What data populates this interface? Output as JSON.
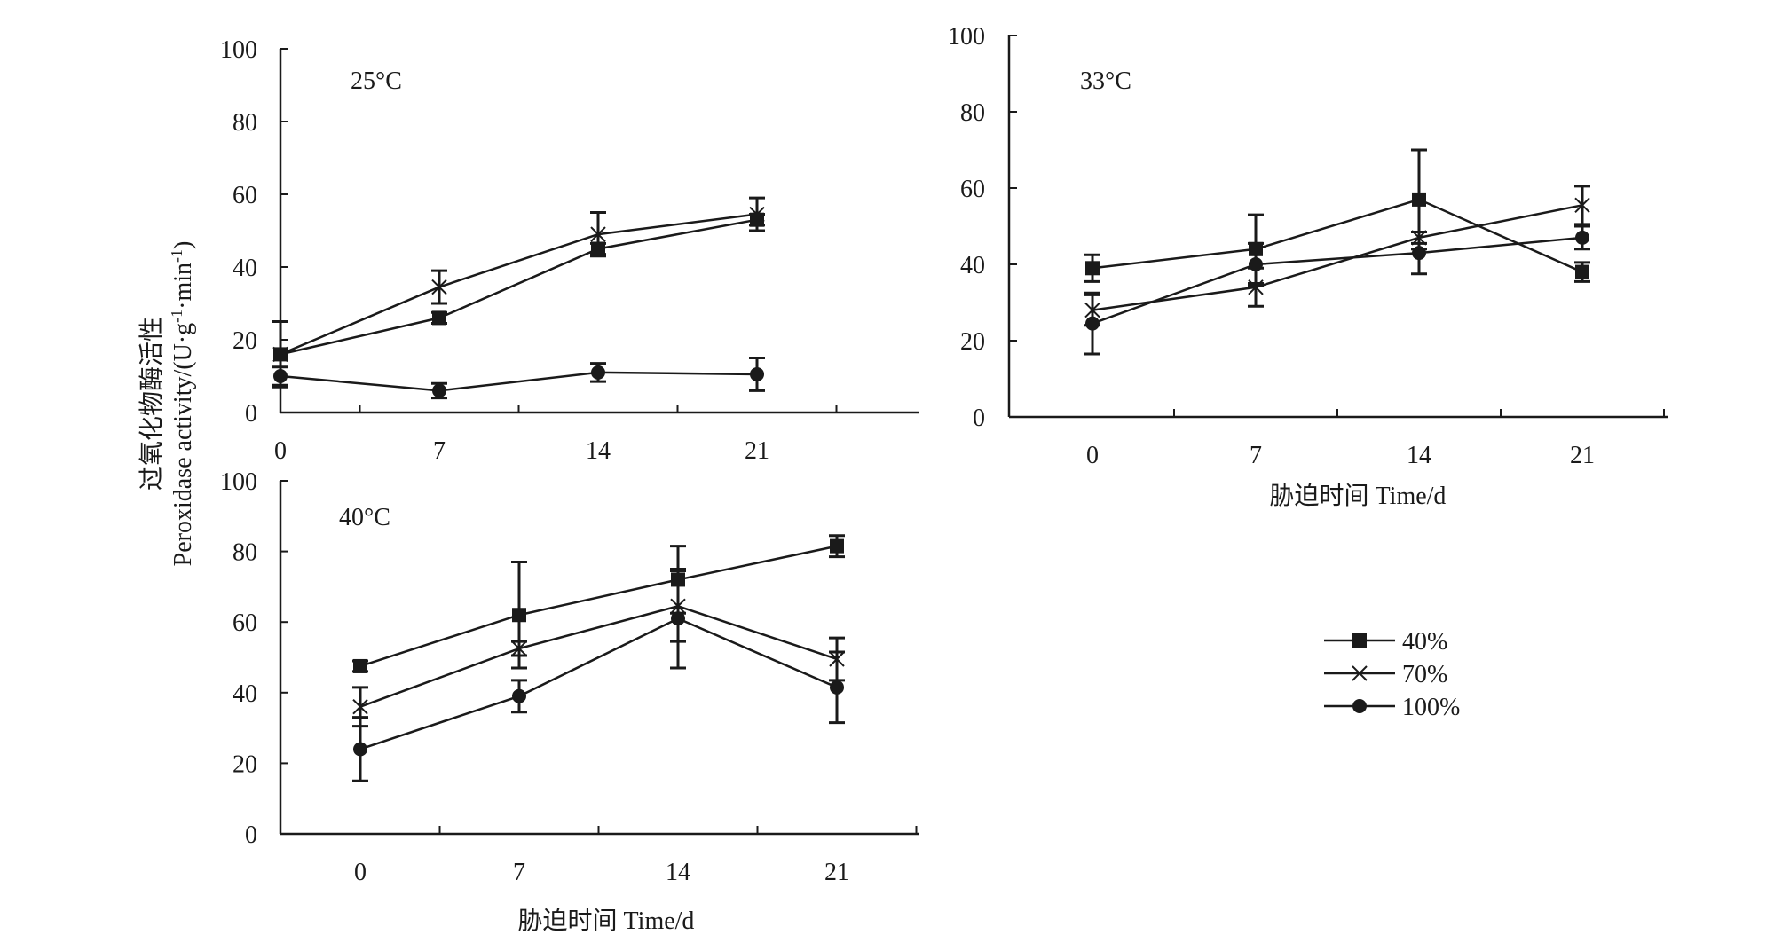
{
  "figure": {
    "ylabel_cn": "过氧化物酶活性",
    "ylabel_en": "Peroxidase activity/(U·g",
    "ylabel_sup1": "-1",
    "ylabel_mid": "·min",
    "ylabel_sup2": "-1",
    "ylabel_end": ")",
    "xlabel": "胁迫时间 Time/d"
  },
  "legend": [
    "40%",
    "70%",
    "100%"
  ],
  "chart_data": [
    {
      "type": "line",
      "title": "25°C",
      "categories": [
        "0",
        "7",
        "14",
        "21"
      ],
      "ylim": [
        0,
        100
      ],
      "yticks": [
        "0",
        "20",
        "40",
        "60",
        "80",
        "100"
      ],
      "series": [
        {
          "name": "40%",
          "marker": "square",
          "values": [
            16,
            26,
            45,
            53
          ],
          "err": [
            0,
            1.5,
            1.5,
            1.5
          ]
        },
        {
          "name": "70%",
          "marker": "cross",
          "values": [
            16,
            34.5,
            49,
            54.5
          ],
          "err": [
            9,
            4.5,
            6,
            4.5
          ]
        },
        {
          "name": "100%",
          "marker": "circle",
          "values": [
            10,
            6,
            11,
            10.5
          ],
          "err": [
            2.5,
            2,
            2.5,
            4.5
          ]
        }
      ]
    },
    {
      "type": "line",
      "title": "33°C",
      "categories": [
        "0",
        "7",
        "14",
        "21"
      ],
      "ylim": [
        0,
        100
      ],
      "yticks": [
        "0",
        "20",
        "40",
        "60",
        "80",
        "100"
      ],
      "series": [
        {
          "name": "40%",
          "marker": "square",
          "values": [
            39,
            44,
            57,
            38
          ],
          "err": [
            3.5,
            9,
            13,
            2.5
          ]
        },
        {
          "name": "70%",
          "marker": "cross",
          "values": [
            28,
            34,
            47,
            55.5
          ],
          "err": [
            4,
            5,
            1.5,
            5
          ]
        },
        {
          "name": "100%",
          "marker": "circle",
          "values": [
            24.5,
            40,
            43,
            47
          ],
          "err": [
            8,
            5.5,
            5.5,
            3
          ]
        }
      ]
    },
    {
      "type": "line",
      "title": "40°C",
      "categories": [
        "0",
        "7",
        "14",
        "21"
      ],
      "ylim": [
        0,
        100
      ],
      "yticks": [
        "0",
        "20",
        "40",
        "60",
        "80",
        "100"
      ],
      "series": [
        {
          "name": "40%",
          "marker": "square",
          "values": [
            47.5,
            62,
            72,
            81.5
          ],
          "err": [
            1.5,
            15,
            9.5,
            3
          ]
        },
        {
          "name": "70%",
          "marker": "cross",
          "values": [
            36,
            52.5,
            64.5,
            49.5
          ],
          "err": [
            5.5,
            2,
            10,
            6
          ]
        },
        {
          "name": "100%",
          "marker": "circle",
          "values": [
            24,
            39,
            61,
            41.5
          ],
          "err": [
            9,
            4.5,
            14,
            10
          ]
        }
      ]
    }
  ]
}
